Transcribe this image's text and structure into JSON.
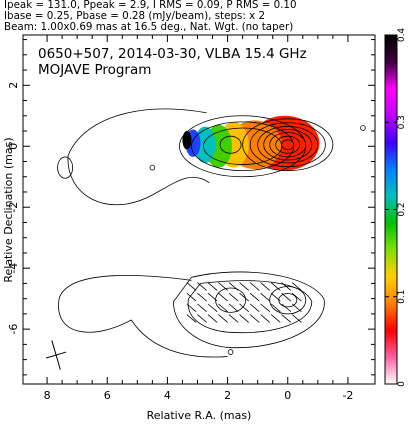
{
  "header": {
    "line1": "Ipeak = 131.0, Ppeak = 2.9, I RMS = 0.09, P RMS = 0.10",
    "line2": "Ibase = 0.25, Pbase = 0.28 (mJy/beam), steps: x 2",
    "line3": "Beam: 1.00x0.69 mas at 16.5 deg., Nat. Wgt. (no taper)"
  },
  "chart_data": {
    "type": "contour",
    "title": "0650+507, 2014-03-30, VLBA 15.4 GHz",
    "subtitle": "MOJAVE Program",
    "xlabel": "Relative R.A. (mas)",
    "ylabel": "Relative Declination (mas)",
    "xlim": [
      8.8,
      -2.9
    ],
    "ylim": [
      -7.8,
      3.65
    ],
    "x_ticks": [
      8,
      6,
      4,
      2,
      0,
      -2
    ],
    "y_ticks": [
      2,
      0,
      -2,
      -4,
      -6
    ],
    "colorbar": {
      "ticks": [
        0,
        0.1,
        0.2,
        0.3,
        0.4
      ],
      "range": [
        0,
        0.4
      ],
      "colors": [
        "#ffffff",
        "#ff60a0",
        "#ff0000",
        "#ff8000",
        "#ffd000",
        "#80e000",
        "#00c000",
        "#00c0c0",
        "#0080ff",
        "#4000ff",
        "#c000ff",
        "#ff00ff",
        "#400040",
        "#000000"
      ]
    },
    "core": {
      "x": 0.0,
      "y": 0.05
    },
    "beam": {
      "major": 1.0,
      "minor": 0.69,
      "pa": 16.5
    },
    "panels": [
      "total intensity + fractional polarization",
      "total intensity + EVPA sticks"
    ]
  }
}
